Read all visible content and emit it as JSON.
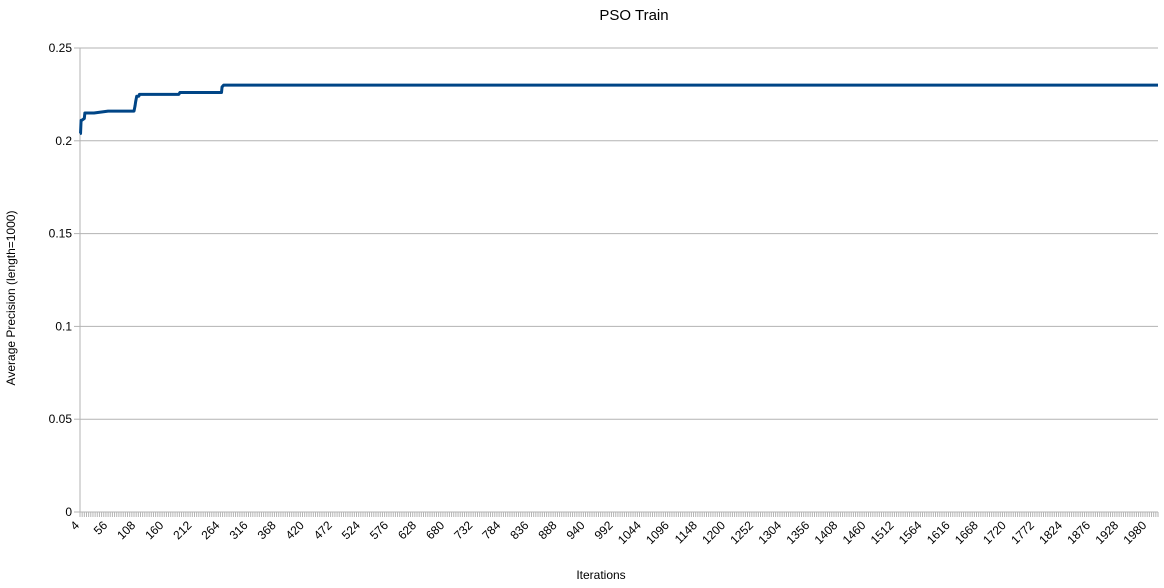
{
  "chart_data": {
    "type": "line",
    "title": "PSO Train",
    "xlabel": "Iterations",
    "ylabel": "Average Precision (length=1000)",
    "xlim": [
      4,
      2000
    ],
    "ylim": [
      0,
      0.25
    ],
    "y_ticks": [
      0,
      0.05,
      0.1,
      0.15,
      0.2,
      0.25
    ],
    "x_tick_labels": [
      "4",
      "56",
      "108",
      "160",
      "212",
      "264",
      "316",
      "368",
      "420",
      "472",
      "524",
      "576",
      "628",
      "680",
      "732",
      "784",
      "836",
      "888",
      "940",
      "992",
      "1044",
      "1096",
      "1148",
      "1200",
      "1252",
      "1304",
      "1356",
      "1408",
      "1460",
      "1512",
      "1564",
      "1616",
      "1668",
      "1720",
      "1772",
      "1824",
      "1876",
      "1928",
      "1980"
    ],
    "grid": true,
    "legend": "none",
    "line_color": "#004586",
    "series": [
      {
        "x": [
          4,
          5,
          6,
          7,
          12,
          13,
          25,
          28,
          30,
          56,
          57,
          80,
          85,
          103,
          104,
          106,
          107,
          109,
          113,
          114,
          115,
          187,
          189,
          266,
          267,
          270,
          2000
        ],
        "y": [
          0.204,
          0.204,
          0.211,
          0.211,
          0.212,
          0.215,
          0.215,
          0.215,
          0.215,
          0.216,
          0.216,
          0.216,
          0.216,
          0.216,
          0.216,
          0.219,
          0.221,
          0.224,
          0.224,
          0.225,
          0.225,
          0.225,
          0.226,
          0.226,
          0.229,
          0.23,
          0.23
        ]
      }
    ]
  }
}
